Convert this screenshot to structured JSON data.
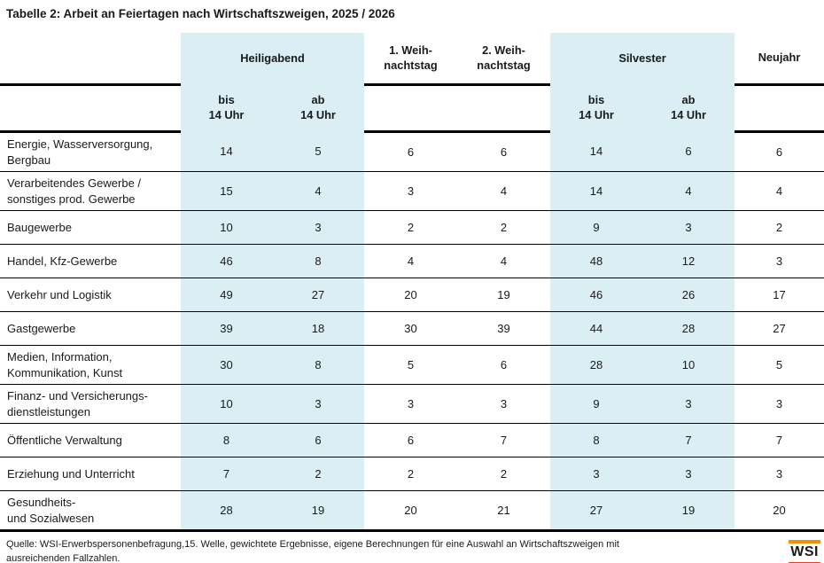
{
  "title": "Tabelle 2: Arbeit an Feiertagen nach Wirtschaftszweigen, 2025 / 2026",
  "colors": {
    "highlight": "#daeef3",
    "logo_bar_top": "#f18f01",
    "logo_bar_bottom": "#e63b1f"
  },
  "table": {
    "group_headers": [
      {
        "label": "Heiligabend",
        "highlight": true
      },
      {
        "label": "1. Weih-\nnachtstag",
        "highlight": false
      },
      {
        "label": "2. Weih-\nnachtstag",
        "highlight": false
      },
      {
        "label": "Silvester",
        "highlight": true
      },
      {
        "label": "Neujahr",
        "highlight": false
      }
    ],
    "sub_headers": [
      "bis\n14 Uhr",
      "ab\n14 Uhr",
      "bis\n14 Uhr",
      "ab\n14 Uhr"
    ],
    "highlight_value_columns": [
      0,
      1,
      4,
      5
    ],
    "rows": [
      {
        "label": "Energie, Wasserversorgung,\nBergbau",
        "values": [
          14,
          5,
          6,
          6,
          14,
          6,
          6
        ]
      },
      {
        "label": "Verarbeitendes Gewerbe /\nsonstiges prod. Gewerbe",
        "values": [
          15,
          4,
          3,
          4,
          14,
          4,
          4
        ]
      },
      {
        "label": "Baugewerbe",
        "values": [
          10,
          3,
          2,
          2,
          9,
          3,
          2
        ]
      },
      {
        "label": "Handel, Kfz-Gewerbe",
        "values": [
          46,
          8,
          4,
          4,
          48,
          12,
          3
        ]
      },
      {
        "label": "Verkehr und Logistik",
        "values": [
          49,
          27,
          20,
          19,
          46,
          26,
          17
        ]
      },
      {
        "label": "Gastgewerbe",
        "values": [
          39,
          18,
          30,
          39,
          44,
          28,
          27
        ]
      },
      {
        "label": "Medien, Information,\nKommunikation, Kunst",
        "values": [
          30,
          8,
          5,
          6,
          28,
          10,
          5
        ]
      },
      {
        "label": "Finanz- und Versicherungs-\ndienstleistungen",
        "values": [
          10,
          3,
          3,
          3,
          9,
          3,
          3
        ]
      },
      {
        "label": "Öffentliche Verwaltung",
        "values": [
          8,
          6,
          6,
          7,
          8,
          7,
          7
        ]
      },
      {
        "label": "Erziehung und Unterricht",
        "values": [
          7,
          2,
          2,
          2,
          3,
          3,
          3
        ]
      },
      {
        "label": "Gesundheits-\nund Sozialwesen",
        "values": [
          28,
          19,
          20,
          21,
          27,
          19,
          20
        ]
      }
    ]
  },
  "footer": {
    "source": "Quelle: WSI-Erwerbspersonenbefragung,15. Welle, gewichtete Ergebnisse, eigene Berechnungen für eine Auswahl an Wirtschaftszweigen mit ausreichenden Fallzahlen.",
    "logo_text": "WSI"
  }
}
